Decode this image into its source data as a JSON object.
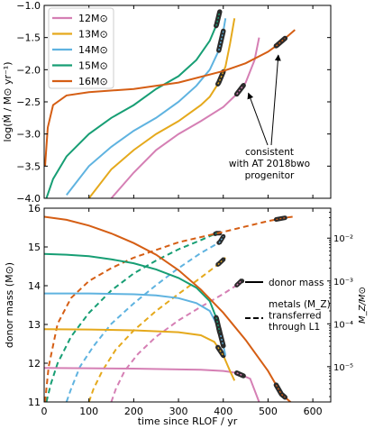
{
  "colors": {
    "12": "#d57fb4",
    "13": "#e5a91c",
    "14": "#5fb3e0",
    "15": "#179e74",
    "16": "#d55e14",
    "marker": "#2a2a2a",
    "annotation": "#000000"
  },
  "chart_data": [
    {
      "type": "line",
      "xlim": [
        0,
        640
      ],
      "ylim": [
        -4.0,
        -1.0
      ],
      "ylabel": "log(Ṁ / M⊙ yr⁻¹)",
      "xlabel": "",
      "grid": false,
      "legend_position": "top-left",
      "yticks": [
        -4.0,
        -3.5,
        -3.0,
        -2.5,
        -2.0,
        -1.5,
        -1.0
      ],
      "yticklabels": [
        "−4.0",
        "−3.5",
        "−3.0",
        "−2.5",
        "−2.0",
        "−1.5",
        "−1.0"
      ],
      "xticks": [
        0,
        100,
        200,
        300,
        400,
        500,
        600
      ],
      "series": [
        {
          "name": "12M⊙",
          "key": "12",
          "x": [
            150,
            200,
            250,
            300,
            350,
            400,
            430,
            450,
            470,
            480
          ],
          "y": [
            -4.0,
            -3.6,
            -3.25,
            -3.0,
            -2.8,
            -2.58,
            -2.38,
            -2.2,
            -1.85,
            -1.5
          ],
          "highlight": [
            430,
            445
          ]
        },
        {
          "name": "13M⊙",
          "key": "13",
          "x": [
            100,
            150,
            200,
            250,
            300,
            350,
            370,
            390,
            405,
            415,
            425
          ],
          "y": [
            -4.0,
            -3.55,
            -3.25,
            -3.0,
            -2.8,
            -2.55,
            -2.42,
            -2.2,
            -1.95,
            -1.6,
            -1.2
          ],
          "highlight": [
            388,
            400
          ]
        },
        {
          "name": "14M⊙",
          "key": "14",
          "x": [
            50,
            100,
            150,
            200,
            250,
            300,
            340,
            370,
            390,
            400,
            405
          ],
          "y": [
            -3.95,
            -3.5,
            -3.2,
            -2.95,
            -2.75,
            -2.5,
            -2.25,
            -2.0,
            -1.7,
            -1.4,
            -1.2
          ],
          "highlight": [
            390,
            400
          ]
        },
        {
          "name": "15M⊙",
          "key": "15",
          "x": [
            5,
            20,
            50,
            100,
            150,
            200,
            250,
            300,
            340,
            370,
            385,
            392
          ],
          "y": [
            -4.0,
            -3.7,
            -3.35,
            -3.0,
            -2.75,
            -2.55,
            -2.3,
            -2.1,
            -1.85,
            -1.55,
            -1.3,
            -1.1
          ],
          "highlight": [
            384,
            392
          ]
        },
        {
          "name": "16M⊙",
          "key": "16",
          "x": [
            2,
            8,
            20,
            50,
            100,
            200,
            300,
            400,
            450,
            500,
            520,
            540,
            560
          ],
          "y": [
            -3.5,
            -2.9,
            -2.55,
            -2.4,
            -2.35,
            -2.3,
            -2.2,
            -2.02,
            -1.9,
            -1.72,
            -1.62,
            -1.5,
            -1.38
          ],
          "highlight": [
            518,
            538
          ]
        }
      ],
      "annotation": {
        "lines": [
          "consistent",
          "with AT 2018bwo",
          "progenitor"
        ],
        "arrow_targets": [
          [
            440,
            -2.28
          ],
          [
            527,
            -1.66
          ]
        ]
      }
    },
    {
      "type": "line",
      "xlim": [
        0,
        640
      ],
      "ylim": [
        11,
        16
      ],
      "xlabel": "time since RLOF / yr",
      "ylabel": "donor mass (M⊙)",
      "y2label": "M_Z/M⊙",
      "y2_scale": "log",
      "y2lim": [
        1.5e-06,
        0.05
      ],
      "grid": false,
      "yticks": [
        11,
        12,
        13,
        14,
        15,
        16
      ],
      "xticks": [
        0,
        100,
        200,
        300,
        400,
        500,
        600
      ],
      "y2ticks": [
        1e-05,
        0.0001,
        0.001,
        0.01
      ],
      "y2ticklabels": [
        "10⁻⁵",
        "10⁻⁴",
        "10⁻³",
        "10⁻²"
      ],
      "legend": {
        "solid": "donor mass",
        "dashed": [
          "metals (M_Z)",
          "transferred",
          "through L1"
        ]
      },
      "mass_series": [
        {
          "key": "12",
          "x": [
            0,
            100,
            200,
            300,
            350,
            400,
            430,
            460,
            480
          ],
          "y": [
            11.88,
            11.87,
            11.86,
            11.84,
            11.83,
            11.8,
            11.75,
            11.6,
            11.0
          ],
          "highlight": [
            430,
            445
          ]
        },
        {
          "key": "13",
          "x": [
            0,
            100,
            200,
            300,
            350,
            380,
            400,
            415,
            425
          ],
          "y": [
            12.88,
            12.87,
            12.85,
            12.8,
            12.72,
            12.55,
            12.2,
            11.8,
            11.55
          ],
          "highlight": [
            388,
            400
          ]
        },
        {
          "key": "14",
          "x": [
            0,
            100,
            200,
            250,
            300,
            340,
            370,
            390,
            400,
            405
          ],
          "y": [
            13.8,
            13.8,
            13.78,
            13.75,
            13.68,
            13.55,
            13.35,
            12.9,
            12.45,
            12.2
          ],
          "highlight": [
            390,
            400
          ]
        },
        {
          "key": "15",
          "x": [
            0,
            50,
            100,
            150,
            200,
            250,
            300,
            340,
            370,
            385,
            392
          ],
          "y": [
            14.82,
            14.8,
            14.76,
            14.68,
            14.58,
            14.42,
            14.2,
            13.95,
            13.6,
            13.15,
            12.8
          ],
          "highlight": [
            384,
            392
          ]
        },
        {
          "key": "16",
          "x": [
            0,
            50,
            100,
            150,
            200,
            250,
            300,
            350,
            400,
            450,
            500,
            530,
            560
          ],
          "y": [
            15.78,
            15.7,
            15.55,
            15.35,
            15.1,
            14.8,
            14.4,
            13.9,
            13.3,
            12.6,
            11.8,
            11.2,
            10.9
          ],
          "highlight": [
            518,
            538
          ]
        }
      ],
      "metal_series": [
        {
          "key": "12",
          "x": [
            150,
            160,
            180,
            210,
            250,
            300,
            350,
            400,
            430,
            440
          ],
          "y": [
            1.5e-06,
            3e-06,
            8e-06,
            2e-05,
            5e-05,
            0.00012,
            0.00025,
            0.0005,
            0.0008,
            0.001
          ],
          "highlight": [
            430,
            442
          ]
        },
        {
          "key": "13",
          "x": [
            100,
            110,
            130,
            160,
            200,
            250,
            300,
            350,
            390,
            405
          ],
          "y": [
            1.5e-06,
            3e-06,
            8e-06,
            2.5e-05,
            7e-05,
            0.0002,
            0.0005,
            0.0012,
            0.0025,
            0.0035
          ],
          "highlight": [
            388,
            400
          ]
        },
        {
          "key": "14",
          "x": [
            50,
            60,
            80,
            110,
            150,
            200,
            250,
            300,
            350,
            392,
            400
          ],
          "y": [
            1.5e-06,
            3e-06,
            1e-05,
            3e-05,
            0.0001,
            0.0003,
            0.0008,
            0.002,
            0.0045,
            0.008,
            0.011
          ],
          "highlight": [
            390,
            400
          ]
        },
        {
          "key": "15",
          "x": [
            5,
            15,
            30,
            60,
            100,
            150,
            200,
            250,
            300,
            350,
            385
          ],
          "y": [
            1.5e-06,
            4e-06,
            1.2e-05,
            5e-05,
            0.00018,
            0.0006,
            0.0015,
            0.003,
            0.0055,
            0.009,
            0.013
          ],
          "highlight": [
            382,
            392
          ]
        },
        {
          "key": "16",
          "x": [
            2,
            10,
            30,
            60,
            100,
            150,
            200,
            300,
            400,
            500,
            540,
            560
          ],
          "y": [
            1.5e-06,
            1e-05,
            0.0001,
            0.0004,
            0.001,
            0.002,
            0.0035,
            0.008,
            0.014,
            0.025,
            0.03,
            0.032
          ],
          "highlight": [
            518,
            538
          ]
        }
      ]
    }
  ]
}
